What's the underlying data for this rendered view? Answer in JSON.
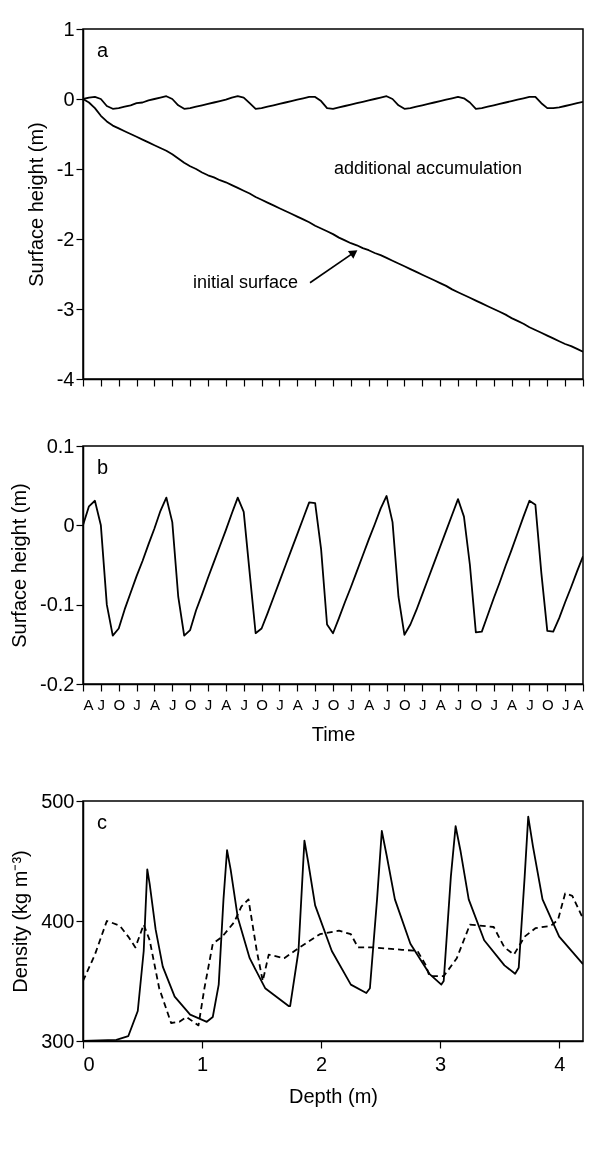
{
  "chart_data": [
    {
      "type": "line",
      "ylabel": "Surface height (m)",
      "ylim": [
        -4,
        1
      ],
      "yticks": [
        -4,
        -3,
        -2,
        -1,
        0,
        1
      ],
      "tick_labels": "y",
      "categories": [
        null,
        null,
        null,
        null,
        null,
        null,
        null,
        null,
        null,
        null,
        null,
        null,
        null,
        null,
        null,
        null,
        null,
        null,
        null,
        null,
        null,
        null,
        null,
        null,
        null,
        null,
        null,
        null,
        null,
        null,
        null,
        null,
        null,
        null,
        null,
        null,
        null,
        null,
        null,
        null,
        null,
        null,
        null,
        null,
        null,
        null,
        null,
        null,
        null,
        null,
        null,
        null,
        null,
        null,
        null,
        null,
        null,
        null,
        null,
        null,
        null,
        null,
        null,
        null,
        null,
        null,
        null,
        null,
        null,
        null,
        null,
        null,
        null,
        null,
        null,
        null,
        null,
        null,
        null,
        null,
        null,
        null,
        null,
        null,
        null
      ],
      "annotations": [
        "a",
        "additional accumulation",
        "initial surface"
      ],
      "series": [
        {
          "color": "#000000",
          "line_style": "solid",
          "values": [
            0,
            0.02,
            0.03,
            0,
            -0.1,
            -0.14,
            -0.13,
            -0.11,
            -0.09,
            -0.06,
            -0.05,
            -0.02,
            0,
            0.02,
            0.04,
            0,
            -0.09,
            -0.14,
            -0.13,
            -0.11,
            -0.09,
            -0.07,
            -0.05,
            -0.03,
            -0.01,
            0.02,
            0.04,
            0.02,
            -0.06,
            -0.14,
            -0.13,
            -0.11,
            -0.09,
            -0.07,
            -0.05,
            -0.03,
            -0.01,
            0.01,
            0.03,
            0.03,
            -0.03,
            -0.13,
            -0.14,
            -0.12,
            -0.1,
            -0.08,
            -0.06,
            -0.04,
            -0.02,
            0,
            0.02,
            0.04,
            0,
            -0.09,
            -0.14,
            -0.13,
            -0.11,
            -0.09,
            -0.07,
            -0.05,
            -0.03,
            -0.01,
            0.01,
            0.03,
            0.01,
            -0.05,
            -0.14,
            -0.13,
            -0.11,
            -0.09,
            -0.07,
            -0.05,
            -0.03,
            -0.01,
            0.01,
            0.03,
            0.03,
            -0.06,
            -0.13,
            -0.13,
            -0.12,
            -0.1,
            -0.08,
            -0.06,
            -0.04
          ]
        },
        {
          "color": "#000000",
          "line_style": "solid",
          "values": [
            0,
            -0.05,
            -0.13,
            -0.24,
            -0.32,
            -0.38,
            -0.42,
            -0.46,
            -0.5,
            -0.54,
            -0.58,
            -0.62,
            -0.66,
            -0.7,
            -0.74,
            -0.79,
            -0.85,
            -0.91,
            -0.96,
            -1.0,
            -1.05,
            -1.09,
            -1.12,
            -1.16,
            -1.19,
            -1.23,
            -1.27,
            -1.31,
            -1.35,
            -1.4,
            -1.44,
            -1.48,
            -1.52,
            -1.56,
            -1.6,
            -1.64,
            -1.68,
            -1.72,
            -1.76,
            -1.81,
            -1.85,
            -1.89,
            -1.93,
            -1.98,
            -2.02,
            -2.06,
            -2.09,
            -2.13,
            -2.16,
            -2.2,
            -2.23,
            -2.27,
            -2.31,
            -2.35,
            -2.39,
            -2.43,
            -2.47,
            -2.51,
            -2.55,
            -2.59,
            -2.63,
            -2.67,
            -2.72,
            -2.76,
            -2.8,
            -2.84,
            -2.88,
            -2.92,
            -2.96,
            -3.0,
            -3.04,
            -3.08,
            -3.13,
            -3.17,
            -3.21,
            -3.26,
            -3.3,
            -3.34,
            -3.38,
            -3.42,
            -3.46,
            -3.5,
            -3.53,
            -3.57,
            -3.61
          ]
        }
      ]
    },
    {
      "type": "line",
      "ylabel": "Surface height (m)",
      "xlabel": "Time",
      "ylim": [
        -0.2,
        0.1
      ],
      "yticks": [
        -0.2,
        -0.1,
        0,
        0.1
      ],
      "categories": [
        "A",
        null,
        null,
        "J",
        null,
        null,
        "O",
        null,
        null,
        "J",
        null,
        null,
        "A",
        null,
        null,
        "J",
        null,
        null,
        "O",
        null,
        null,
        "J",
        null,
        null,
        "A",
        null,
        null,
        "J",
        null,
        null,
        "O",
        null,
        null,
        "J",
        null,
        null,
        "A",
        null,
        null,
        "J",
        null,
        null,
        "O",
        null,
        null,
        "J",
        null,
        null,
        "A",
        null,
        null,
        "J",
        null,
        null,
        "O",
        null,
        null,
        "J",
        null,
        null,
        "A",
        null,
        null,
        "J",
        null,
        null,
        "O",
        null,
        null,
        "J",
        null,
        null,
        "A",
        null,
        null,
        "J",
        null,
        null,
        "O",
        null,
        null,
        "J",
        null,
        null,
        "A"
      ],
      "annotations": [
        "b"
      ],
      "series": [
        {
          "color": "#000000",
          "line_style": "solid",
          "values": [
            0,
            0.024,
            0.031,
            0,
            -0.1,
            -0.139,
            -0.13,
            -0.106,
            -0.085,
            -0.064,
            -0.045,
            -0.024,
            -0.004,
            0.018,
            0.035,
            0.004,
            -0.09,
            -0.139,
            -0.132,
            -0.107,
            -0.087,
            -0.066,
            -0.046,
            -0.026,
            -0.006,
            0.015,
            0.035,
            0.017,
            -0.06,
            -0.136,
            -0.13,
            -0.111,
            -0.091,
            -0.071,
            -0.051,
            -0.031,
            -0.011,
            0.009,
            0.029,
            0.028,
            -0.03,
            -0.125,
            -0.136,
            -0.117,
            -0.097,
            -0.078,
            -0.058,
            -0.038,
            -0.018,
            0.001,
            0.021,
            0.037,
            0.004,
            -0.09,
            -0.138,
            -0.125,
            -0.107,
            -0.087,
            -0.067,
            -0.047,
            -0.027,
            -0.007,
            0.013,
            0.033,
            0.011,
            -0.05,
            -0.135,
            -0.134,
            -0.113,
            -0.092,
            -0.072,
            -0.051,
            -0.031,
            -0.01,
            0.011,
            0.031,
            0.026,
            -0.06,
            -0.133,
            -0.134,
            -0.117,
            -0.097,
            -0.078,
            -0.058,
            -0.039
          ]
        }
      ]
    },
    {
      "type": "line",
      "ylabel": "Density (kg m⁻³)",
      "xlabel": "Depth (m)",
      "xlim": [
        0,
        4.2
      ],
      "ylim": [
        300,
        500
      ],
      "xticks": [
        0,
        1,
        2,
        3,
        4
      ],
      "yticks": [
        300,
        400,
        500
      ],
      "annotations": [
        "c"
      ],
      "series": [
        {
          "color": "#000000",
          "line_style": "solid",
          "x": [
            0,
            0.28,
            0.38,
            0.46,
            0.51,
            0.54,
            0.56,
            0.61,
            0.67,
            0.77,
            0.9,
            1.04,
            1.09,
            1.14,
            1.18,
            1.21,
            1.24,
            1.3,
            1.4,
            1.53,
            1.73,
            1.74,
            1.81,
            1.86,
            1.89,
            1.95,
            2.09,
            2.25,
            2.38,
            2.41,
            2.47,
            2.51,
            2.55,
            2.62,
            2.75,
            2.91,
            3.01,
            3.03,
            3.09,
            3.13,
            3.17,
            3.24,
            3.37,
            3.54,
            3.63,
            3.66,
            3.71,
            3.74,
            3.78,
            3.86,
            4.0,
            4.2
          ],
          "values": [
            300,
            301,
            304,
            325,
            375,
            443,
            431,
            393,
            362,
            337,
            322,
            316,
            320,
            347,
            418,
            459,
            443,
            403,
            369,
            344,
            329,
            329,
            375,
            467,
            450,
            413,
            375,
            347,
            340,
            344,
            418,
            475,
            455,
            418,
            381,
            356,
            347,
            350,
            437,
            479,
            459,
            418,
            384,
            363,
            356,
            361,
            437,
            487,
            462,
            418,
            387,
            364
          ]
        },
        {
          "color": "#000000",
          "line_style": "dashed",
          "x": [
            0,
            0.1,
            0.2,
            0.23,
            0.31,
            0.38,
            0.44,
            0.51,
            0.56,
            0.64,
            0.74,
            0.81,
            0.87,
            0.97,
            1.02,
            1.09,
            1.17,
            1.27,
            1.33,
            1.39,
            1.46,
            1.51,
            1.56,
            1.69,
            1.82,
            1.99,
            2.15,
            2.25,
            2.31,
            2.43,
            2.68,
            2.81,
            2.88,
            2.91,
            3.03,
            3.14,
            3.25,
            3.45,
            3.54,
            3.62,
            3.71,
            3.8,
            3.93,
            3.99,
            4.05,
            4.11,
            4.2
          ],
          "values": [
            350,
            372,
            400,
            399,
            396,
            387,
            378,
            397,
            384,
            344,
            315,
            316,
            320,
            313,
            344,
            381,
            387,
            399,
            412,
            418,
            375,
            350,
            372,
            369,
            378,
            389,
            392,
            389,
            378,
            378,
            376,
            375,
            363,
            354,
            354,
            369,
            397,
            395,
            378,
            372,
            387,
            394,
            396,
            401,
            423,
            421,
            402
          ]
        }
      ]
    }
  ]
}
